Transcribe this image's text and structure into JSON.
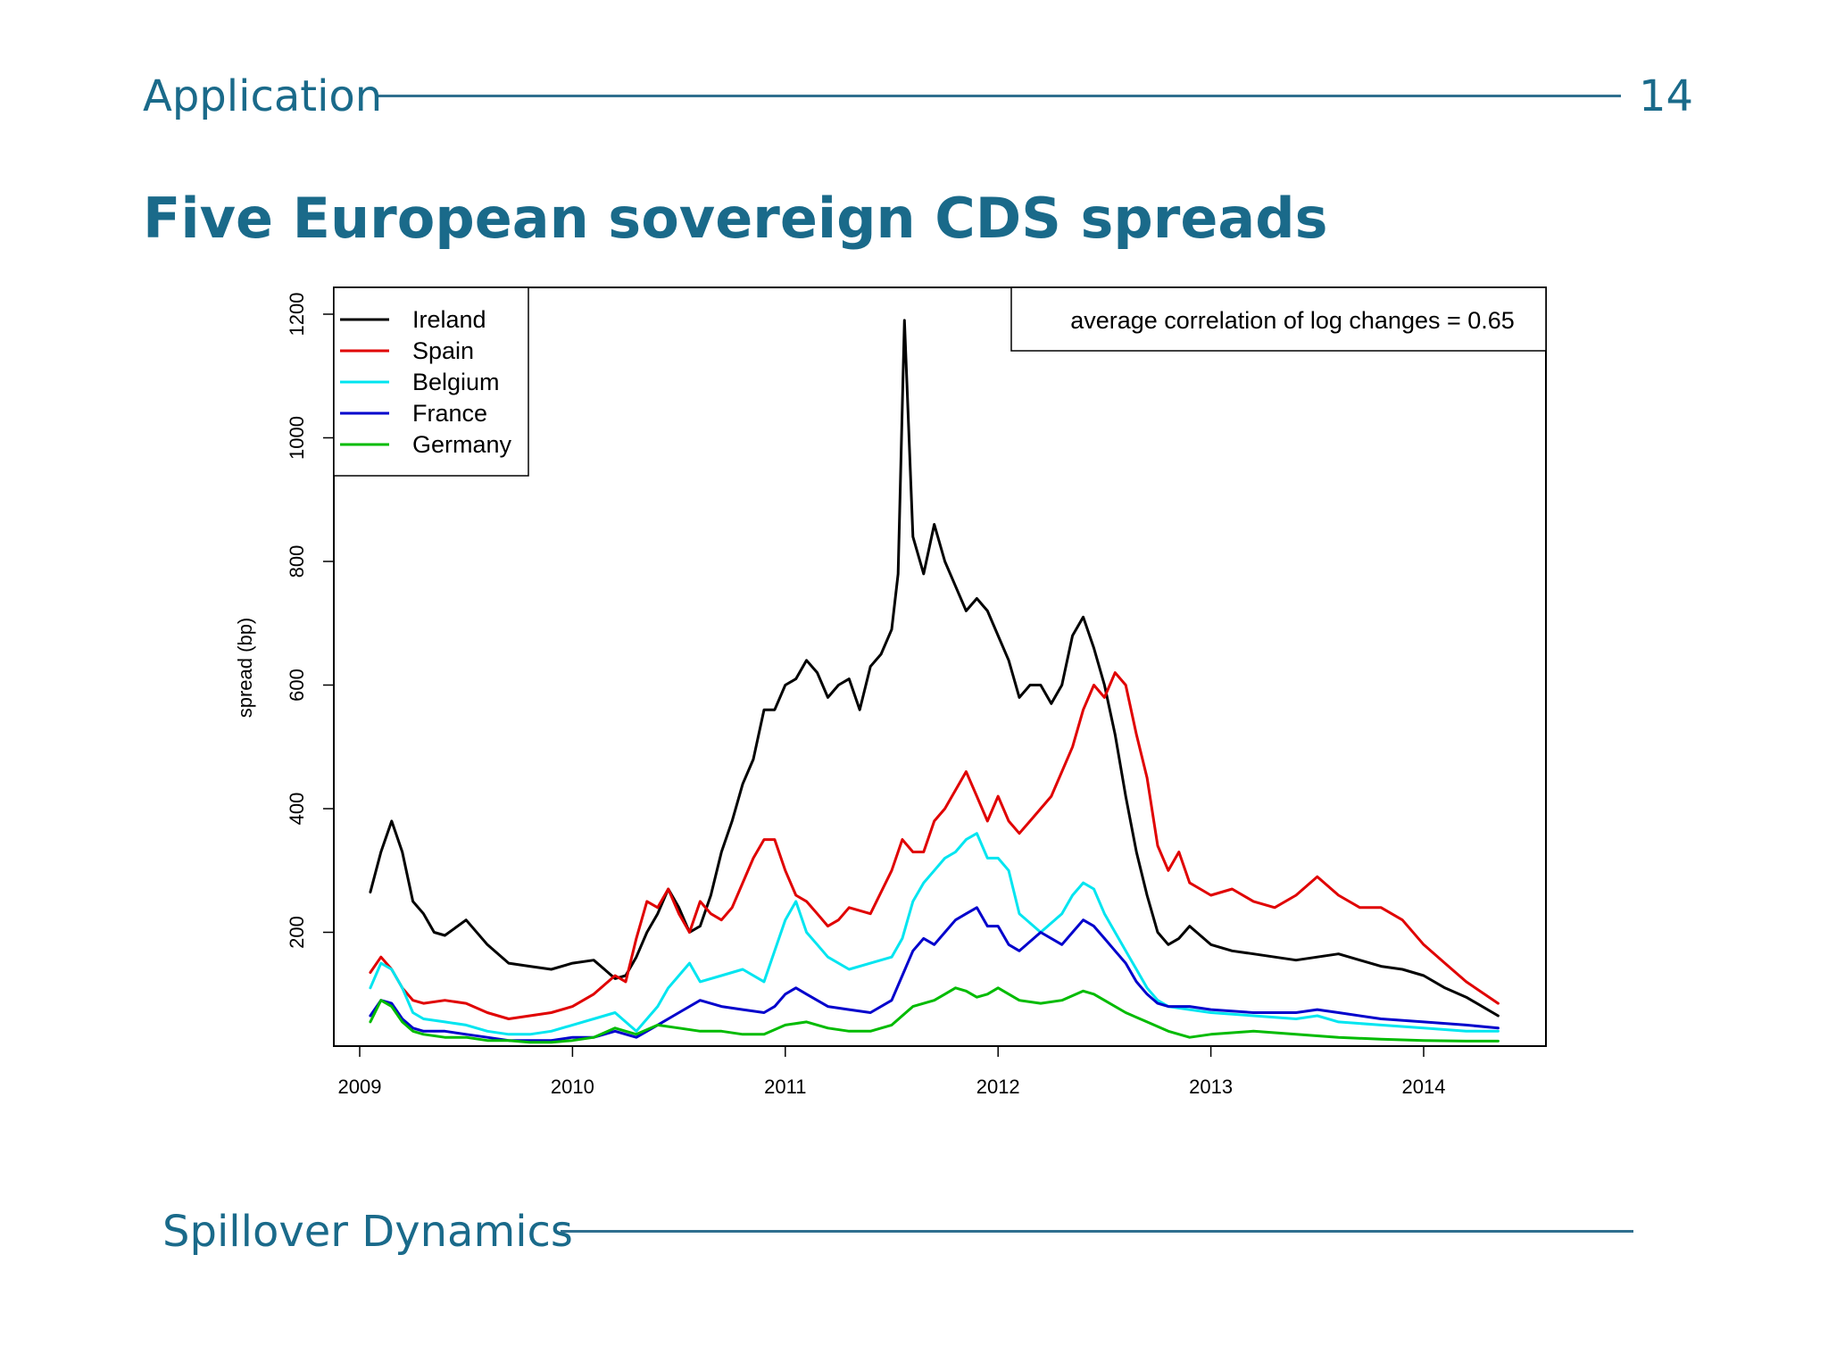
{
  "slide": {
    "section": "Application",
    "page_number": "14",
    "title": "Five European sovereign CDS spreads",
    "footer": "Spillover Dynamics"
  },
  "chart_data": {
    "type": "line",
    "title": "",
    "xlabel": "",
    "ylabel": "spread (bp)",
    "annotation": "average correlation of log changes = 0.65",
    "x_ticks": [
      "2009",
      "2010",
      "2011",
      "2012",
      "2013",
      "2014"
    ],
    "y_ticks": [
      200,
      400,
      600,
      800,
      1000,
      1200
    ],
    "xlim": [
      2009.0,
      2014.5
    ],
    "ylim": [
      20,
      1240
    ],
    "grid": false,
    "legend_position": "top-left",
    "series": [
      {
        "name": "Ireland",
        "color": "#000000",
        "x": [
          2009.05,
          2009.1,
          2009.15,
          2009.2,
          2009.25,
          2009.3,
          2009.35,
          2009.4,
          2009.5,
          2009.6,
          2009.7,
          2009.8,
          2009.9,
          2010.0,
          2010.1,
          2010.15,
          2010.2,
          2010.25,
          2010.3,
          2010.35,
          2010.4,
          2010.45,
          2010.5,
          2010.55,
          2010.6,
          2010.65,
          2010.7,
          2010.75,
          2010.8,
          2010.85,
          2010.9,
          2010.95,
          2011.0,
          2011.05,
          2011.1,
          2011.15,
          2011.2,
          2011.25,
          2011.3,
          2011.35,
          2011.4,
          2011.45,
          2011.5,
          2011.53,
          2011.56,
          2011.6,
          2011.65,
          2011.7,
          2011.75,
          2011.8,
          2011.85,
          2011.9,
          2011.95,
          2012.0,
          2012.05,
          2012.1,
          2012.15,
          2012.2,
          2012.25,
          2012.3,
          2012.35,
          2012.4,
          2012.45,
          2012.5,
          2012.55,
          2012.6,
          2012.65,
          2012.7,
          2012.75,
          2012.8,
          2012.85,
          2012.9,
          2013.0,
          2013.1,
          2013.2,
          2013.3,
          2013.4,
          2013.5,
          2013.6,
          2013.7,
          2013.8,
          2013.9,
          2014.0,
          2014.1,
          2014.2,
          2014.35
        ],
        "y": [
          265,
          330,
          380,
          330,
          250,
          230,
          200,
          195,
          220,
          180,
          150,
          145,
          140,
          150,
          155,
          140,
          125,
          130,
          160,
          200,
          230,
          270,
          240,
          200,
          210,
          260,
          330,
          380,
          440,
          480,
          560,
          560,
          600,
          610,
          640,
          620,
          580,
          600,
          610,
          560,
          630,
          650,
          690,
          780,
          1190,
          840,
          780,
          860,
          800,
          760,
          720,
          740,
          720,
          680,
          640,
          580,
          600,
          600,
          570,
          600,
          680,
          710,
          660,
          600,
          520,
          420,
          330,
          260,
          200,
          180,
          190,
          210,
          180,
          170,
          165,
          160,
          155,
          160,
          165,
          155,
          145,
          140,
          130,
          110,
          95,
          65
        ]
      },
      {
        "name": "Spain",
        "color": "#e00000",
        "x": [
          2009.05,
          2009.1,
          2009.15,
          2009.2,
          2009.25,
          2009.3,
          2009.4,
          2009.5,
          2009.6,
          2009.7,
          2009.8,
          2009.9,
          2010.0,
          2010.1,
          2010.2,
          2010.25,
          2010.3,
          2010.35,
          2010.4,
          2010.45,
          2010.5,
          2010.55,
          2010.6,
          2010.65,
          2010.7,
          2010.75,
          2010.8,
          2010.85,
          2010.9,
          2010.95,
          2011.0,
          2011.05,
          2011.1,
          2011.15,
          2011.2,
          2011.25,
          2011.3,
          2011.4,
          2011.5,
          2011.55,
          2011.6,
          2011.65,
          2011.7,
          2011.75,
          2011.8,
          2011.85,
          2011.9,
          2011.95,
          2012.0,
          2012.05,
          2012.1,
          2012.15,
          2012.2,
          2012.25,
          2012.3,
          2012.35,
          2012.4,
          2012.45,
          2012.5,
          2012.55,
          2012.6,
          2012.65,
          2012.7,
          2012.75,
          2012.8,
          2012.85,
          2012.9,
          2012.95,
          2013.0,
          2013.1,
          2013.2,
          2013.3,
          2013.4,
          2013.5,
          2013.6,
          2013.7,
          2013.8,
          2013.9,
          2014.0,
          2014.1,
          2014.2,
          2014.35
        ],
        "y": [
          135,
          160,
          140,
          110,
          90,
          85,
          90,
          85,
          70,
          60,
          65,
          70,
          80,
          100,
          130,
          120,
          190,
          250,
          240,
          270,
          230,
          200,
          250,
          230,
          220,
          240,
          280,
          320,
          350,
          350,
          300,
          260,
          250,
          230,
          210,
          220,
          240,
          230,
          300,
          350,
          330,
          330,
          380,
          400,
          430,
          460,
          420,
          380,
          420,
          380,
          360,
          380,
          400,
          420,
          460,
          500,
          560,
          600,
          580,
          620,
          600,
          520,
          450,
          340,
          300,
          330,
          280,
          270,
          260,
          270,
          250,
          240,
          260,
          290,
          260,
          240,
          240,
          220,
          180,
          150,
          120,
          85
        ]
      },
      {
        "name": "Belgium",
        "color": "#00e5f0",
        "x": [
          2009.05,
          2009.1,
          2009.15,
          2009.2,
          2009.25,
          2009.3,
          2009.4,
          2009.5,
          2009.6,
          2009.7,
          2009.8,
          2009.9,
          2010.0,
          2010.1,
          2010.2,
          2010.3,
          2010.4,
          2010.45,
          2010.5,
          2010.55,
          2010.6,
          2010.7,
          2010.8,
          2010.9,
          2010.95,
          2011.0,
          2011.05,
          2011.1,
          2011.15,
          2011.2,
          2011.3,
          2011.4,
          2011.5,
          2011.55,
          2011.6,
          2011.65,
          2011.7,
          2011.75,
          2011.8,
          2011.85,
          2011.9,
          2011.95,
          2012.0,
          2012.05,
          2012.1,
          2012.2,
          2012.3,
          2012.35,
          2012.4,
          2012.45,
          2012.5,
          2012.55,
          2012.6,
          2012.65,
          2012.7,
          2012.75,
          2012.8,
          2012.9,
          2013.0,
          2013.2,
          2013.4,
          2013.5,
          2013.6,
          2013.8,
          2014.0,
          2014.2,
          2014.35
        ],
        "y": [
          110,
          150,
          140,
          110,
          70,
          60,
          55,
          50,
          40,
          35,
          35,
          40,
          50,
          60,
          70,
          40,
          80,
          110,
          130,
          150,
          120,
          130,
          140,
          120,
          170,
          220,
          250,
          200,
          180,
          160,
          140,
          150,
          160,
          190,
          250,
          280,
          300,
          320,
          330,
          350,
          360,
          320,
          320,
          300,
          230,
          200,
          230,
          260,
          280,
          270,
          230,
          200,
          170,
          140,
          110,
          90,
          80,
          75,
          70,
          65,
          60,
          65,
          55,
          50,
          45,
          40,
          40
        ]
      },
      {
        "name": "France",
        "color": "#0000cc",
        "x": [
          2009.05,
          2009.1,
          2009.15,
          2009.2,
          2009.25,
          2009.3,
          2009.4,
          2009.5,
          2009.6,
          2009.7,
          2009.8,
          2009.9,
          2010.0,
          2010.1,
          2010.2,
          2010.3,
          2010.4,
          2010.5,
          2010.6,
          2010.7,
          2010.8,
          2010.9,
          2010.95,
          2011.0,
          2011.05,
          2011.1,
          2011.2,
          2011.3,
          2011.4,
          2011.5,
          2011.55,
          2011.6,
          2011.65,
          2011.7,
          2011.75,
          2011.8,
          2011.85,
          2011.9,
          2011.95,
          2012.0,
          2012.05,
          2012.1,
          2012.2,
          2012.3,
          2012.35,
          2012.4,
          2012.45,
          2012.5,
          2012.55,
          2012.6,
          2012.65,
          2012.7,
          2012.75,
          2012.8,
          2012.9,
          2013.0,
          2013.2,
          2013.4,
          2013.5,
          2013.6,
          2013.8,
          2014.0,
          2014.2,
          2014.35
        ],
        "y": [
          65,
          90,
          85,
          60,
          45,
          40,
          40,
          35,
          30,
          25,
          25,
          25,
          30,
          30,
          40,
          30,
          50,
          70,
          90,
          80,
          75,
          70,
          80,
          100,
          110,
          100,
          80,
          75,
          70,
          90,
          130,
          170,
          190,
          180,
          200,
          220,
          230,
          240,
          210,
          210,
          180,
          170,
          200,
          180,
          200,
          220,
          210,
          190,
          170,
          150,
          120,
          100,
          85,
          80,
          80,
          75,
          70,
          70,
          75,
          70,
          60,
          55,
          50,
          45
        ]
      },
      {
        "name": "Germany",
        "color": "#00bb00",
        "x": [
          2009.05,
          2009.1,
          2009.15,
          2009.2,
          2009.25,
          2009.3,
          2009.4,
          2009.5,
          2009.6,
          2009.7,
          2009.8,
          2009.9,
          2010.0,
          2010.1,
          2010.2,
          2010.3,
          2010.4,
          2010.5,
          2010.6,
          2010.7,
          2010.8,
          2010.9,
          2011.0,
          2011.1,
          2011.2,
          2011.3,
          2011.4,
          2011.5,
          2011.6,
          2011.7,
          2011.75,
          2011.8,
          2011.85,
          2011.9,
          2011.95,
          2012.0,
          2012.1,
          2012.2,
          2012.3,
          2012.4,
          2012.45,
          2012.5,
          2012.6,
          2012.7,
          2012.8,
          2012.9,
          2013.0,
          2013.2,
          2013.4,
          2013.6,
          2013.8,
          2014.0,
          2014.2,
          2014.35
        ],
        "y": [
          55,
          90,
          80,
          55,
          40,
          35,
          30,
          30,
          25,
          25,
          22,
          22,
          25,
          30,
          45,
          35,
          50,
          45,
          40,
          40,
          35,
          35,
          50,
          55,
          45,
          40,
          40,
          50,
          80,
          90,
          100,
          110,
          105,
          95,
          100,
          110,
          90,
          85,
          90,
          105,
          100,
          90,
          70,
          55,
          40,
          30,
          35,
          40,
          35,
          30,
          27,
          25,
          24,
          24
        ]
      }
    ]
  }
}
